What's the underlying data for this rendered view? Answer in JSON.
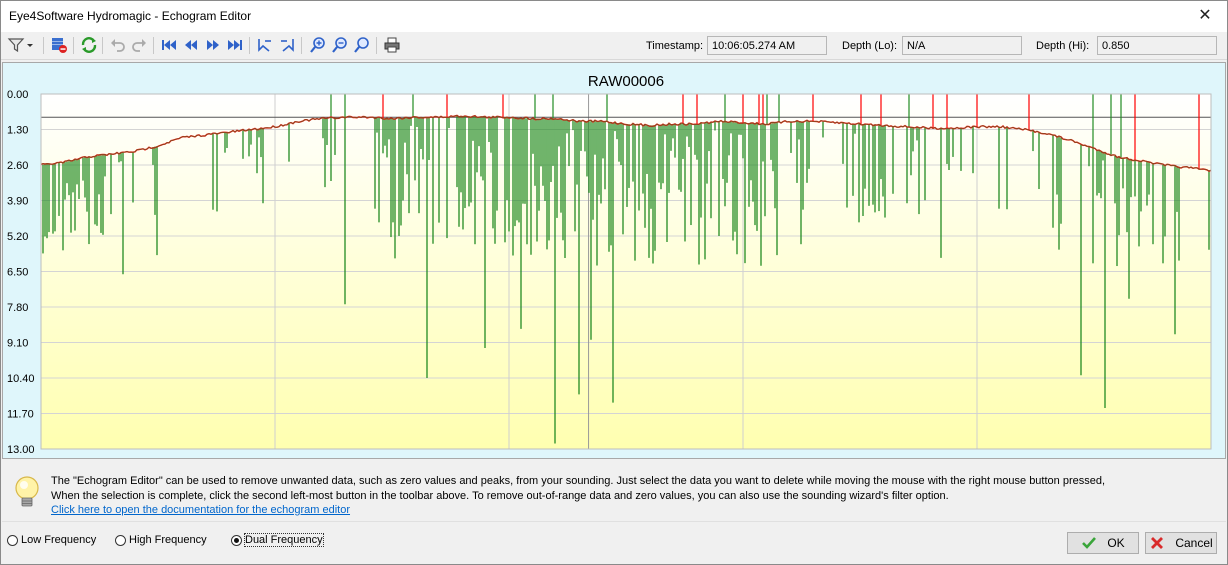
{
  "window": {
    "title": "Eye4Software Hydromagic - Echogram Editor",
    "close_glyph": "✕"
  },
  "toolbar": {
    "icons": [
      "filter-icon",
      "dropdown-arrow-icon",
      "delete-selection-icon",
      "refresh-icon",
      "undo-icon",
      "redo-icon",
      "first-icon",
      "previous-icon",
      "next-icon",
      "last-icon",
      "select-left-icon",
      "select-right-icon",
      "zoom-in-icon",
      "zoom-out-icon",
      "zoom-fit-icon",
      "print-icon"
    ],
    "timestamp_label": "Timestamp:",
    "timestamp_value": "10:06:05.274 AM",
    "depth_lo_label": "Depth (Lo):",
    "depth_lo_value": "N/A",
    "depth_hi_label": "Depth (Hi):",
    "depth_hi_value": "0.850"
  },
  "chart_data": {
    "type": "line",
    "title": "RAW00006",
    "ylim": [
      0,
      13
    ],
    "y_inverted": true,
    "y_ticks": [
      "0.00",
      "1.30",
      "2.60",
      "3.90",
      "5.20",
      "6.50",
      "7.80",
      "9.10",
      "10.40",
      "11.70",
      "13.00"
    ],
    "grid": true,
    "background_gradient": [
      "#ffffff",
      "#ffffb0"
    ],
    "colors": {
      "bottom": "#228b22",
      "surface": "#ff0000",
      "reference_line": "#555555"
    },
    "reference_depth": 0.85,
    "series": [
      {
        "color": "#228b22",
        "x": [
          0,
          2,
          4,
          6,
          8,
          10,
          12,
          14,
          16,
          18,
          20,
          22,
          24,
          26,
          28,
          30,
          32,
          34,
          36,
          38,
          40,
          42,
          44,
          46,
          48,
          50,
          52,
          54,
          56,
          58,
          60,
          62,
          64,
          66,
          68,
          70,
          72,
          74,
          76,
          78,
          80,
          82,
          84,
          86,
          88,
          90,
          92,
          94,
          96,
          98,
          100
        ],
        "values": [
          2.6,
          2.5,
          2.3,
          2.2,
          2.1,
          1.9,
          1.6,
          1.5,
          1.4,
          1.3,
          1.2,
          1.0,
          0.9,
          0.85,
          0.85,
          0.9,
          0.85,
          0.85,
          0.8,
          0.85,
          0.85,
          0.9,
          0.9,
          1.0,
          1.0,
          1.1,
          1.15,
          1.1,
          1.1,
          1.0,
          1.05,
          1.1,
          1.0,
          1.0,
          1.05,
          1.1,
          1.15,
          1.2,
          1.25,
          1.25,
          1.2,
          1.2,
          1.3,
          1.45,
          1.7,
          2.0,
          2.3,
          2.45,
          2.6,
          2.7,
          2.8
        ]
      },
      {
        "color": "#228b22",
        "x": [
          3,
          7,
          10,
          15,
          19,
          26,
          29,
          33,
          38,
          41,
          44,
          46,
          47,
          49,
          52,
          55,
          58,
          61,
          65,
          70,
          74,
          77,
          82,
          87,
          89,
          90,
          91,
          92,
          93,
          94,
          95,
          96,
          97
        ],
        "values": [
          5.0,
          6.6,
          5.9,
          4.3,
          4.0,
          7.7,
          4.7,
          10.4,
          9.3,
          8.6,
          12.8,
          11.0,
          9.0,
          11.3,
          6.0,
          5.4,
          5.2,
          4.8,
          5.5,
          4.7,
          4.0,
          6.0,
          4.2,
          5.7,
          10.3,
          6.2,
          11.5,
          6.3,
          7.5,
          4.3,
          5.5,
          6.2,
          8.8
        ]
      }
    ]
  },
  "info": {
    "line1": "The \"Echogram Editor\" can be used to remove unwanted data, such as zero values and peaks, from your sounding. Just select the data you want to delete while moving the mouse with the right mouse button pressed,",
    "line2": "When the selection is complete, click the second left-most button in the toolbar above. To remove out-of-range data and zero values, you can also use the sounding wizard's filter option.",
    "link": "Click here to open the documentation for the echogram editor",
    "icon": "lightbulb-icon"
  },
  "bottom": {
    "radio_low": "Low Frequency",
    "radio_high": "High Frequency",
    "radio_dual": "Dual Frequency",
    "selected": "dual",
    "ok_label": "OK",
    "cancel_label": "Cancel"
  }
}
